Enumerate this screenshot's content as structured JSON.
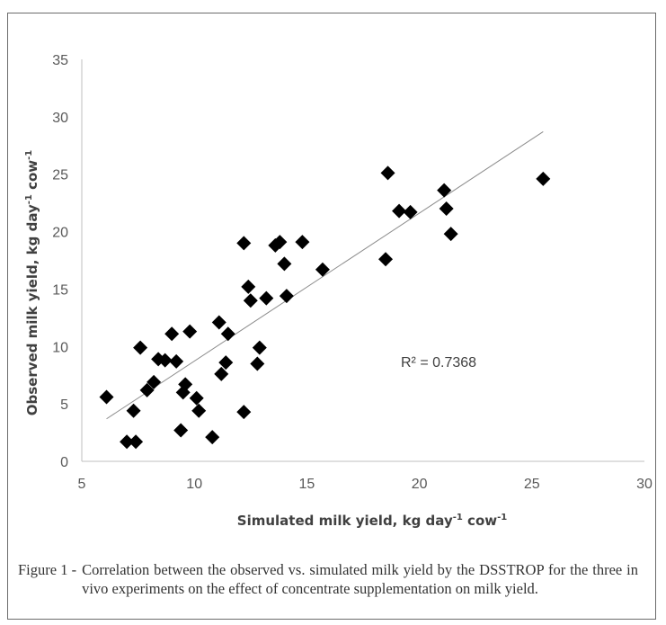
{
  "chart_data": {
    "type": "scatter",
    "xlabel": "Simulated milk yield, kg day",
    "xlabel_unit": "-1",
    "xlabel_tail": " cow",
    "xlabel_tail_unit": "-1",
    "ylabel": "Observed milk yield, kg day",
    "ylabel_unit": "-1",
    "ylabel_tail": " cow",
    "ylabel_tail_unit": "-1",
    "xlim": [
      5,
      30
    ],
    "ylim": [
      0,
      35
    ],
    "xticks": [
      5,
      10,
      15,
      20,
      25,
      30
    ],
    "yticks": [
      0,
      5,
      10,
      15,
      20,
      25,
      30,
      35
    ],
    "grid": false,
    "marker": "diamond",
    "marker_color": "#000000",
    "trendline": {
      "x": [
        6.1,
        25.5
      ],
      "y": [
        3.7,
        28.7
      ],
      "color": "#8c8c8c"
    },
    "annotation": "R² = 0.7368",
    "points": [
      {
        "x": 6.1,
        "y": 5.6
      },
      {
        "x": 7.0,
        "y": 1.7
      },
      {
        "x": 7.4,
        "y": 1.7
      },
      {
        "x": 7.3,
        "y": 4.4
      },
      {
        "x": 7.6,
        "y": 9.9
      },
      {
        "x": 7.9,
        "y": 6.2
      },
      {
        "x": 8.2,
        "y": 6.9
      },
      {
        "x": 8.4,
        "y": 8.9
      },
      {
        "x": 8.7,
        "y": 8.8
      },
      {
        "x": 9.0,
        "y": 11.1
      },
      {
        "x": 9.2,
        "y": 8.7
      },
      {
        "x": 9.4,
        "y": 2.7
      },
      {
        "x": 9.5,
        "y": 6.0
      },
      {
        "x": 9.6,
        "y": 6.7
      },
      {
        "x": 9.8,
        "y": 11.3
      },
      {
        "x": 10.1,
        "y": 5.5
      },
      {
        "x": 10.2,
        "y": 4.4
      },
      {
        "x": 10.8,
        "y": 2.1
      },
      {
        "x": 11.1,
        "y": 12.1
      },
      {
        "x": 11.2,
        "y": 7.6
      },
      {
        "x": 11.4,
        "y": 8.6
      },
      {
        "x": 11.5,
        "y": 11.1
      },
      {
        "x": 12.2,
        "y": 19.0
      },
      {
        "x": 12.2,
        "y": 4.3
      },
      {
        "x": 12.4,
        "y": 15.2
      },
      {
        "x": 12.5,
        "y": 14.0
      },
      {
        "x": 12.8,
        "y": 8.5
      },
      {
        "x": 12.9,
        "y": 9.9
      },
      {
        "x": 13.2,
        "y": 14.2
      },
      {
        "x": 13.6,
        "y": 18.8
      },
      {
        "x": 13.8,
        "y": 19.1
      },
      {
        "x": 14.0,
        "y": 17.2
      },
      {
        "x": 14.1,
        "y": 14.4
      },
      {
        "x": 14.8,
        "y": 19.1
      },
      {
        "x": 15.7,
        "y": 16.7
      },
      {
        "x": 18.5,
        "y": 17.6
      },
      {
        "x": 18.6,
        "y": 25.1
      },
      {
        "x": 19.1,
        "y": 21.8
      },
      {
        "x": 19.6,
        "y": 21.7
      },
      {
        "x": 21.1,
        "y": 23.6
      },
      {
        "x": 21.2,
        "y": 22.0
      },
      {
        "x": 21.4,
        "y": 19.8
      },
      {
        "x": 25.5,
        "y": 24.6
      }
    ]
  },
  "caption": {
    "lead": "Figure 1 -",
    "text": "Correlation between the observed vs. simulated milk yield by the DSSTROP for the three in vivo experiments on the effect of concentrate supplementation on milk yield."
  }
}
